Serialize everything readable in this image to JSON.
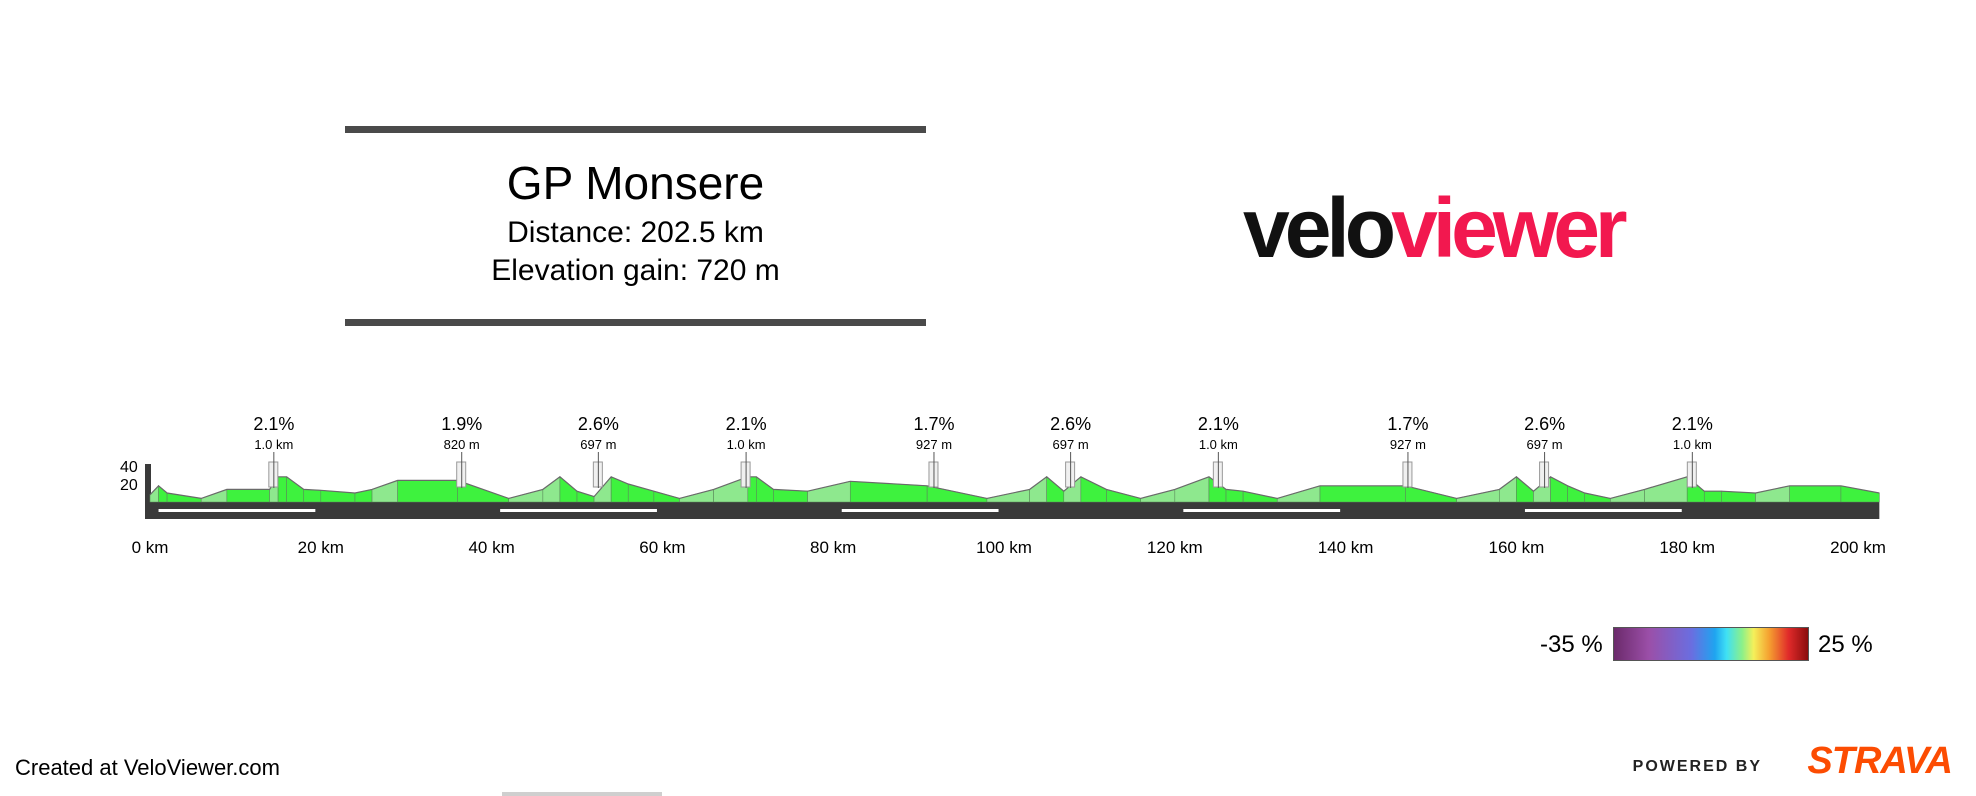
{
  "header": {
    "title": "GP Monsere",
    "distance": "Distance: 202.5 km",
    "elevation_gain": "Elevation gain: 720 m"
  },
  "logo": {
    "part1": "velo",
    "part2": "viewer"
  },
  "legend": {
    "min_label": "-35 %",
    "max_label": "25 %"
  },
  "footer": {
    "credit": "Created at VeloViewer.com",
    "powered_by": "POWERED BY",
    "strava": "STRAVA"
  },
  "colors": {
    "flat": "#3ef23e",
    "climb_light": "#8ee88e",
    "gentle": "#d6e8a0",
    "road": "#3a3a3a",
    "logo_red": "#f2184f",
    "strava": "#fc4c02"
  },
  "chart_data": {
    "type": "area",
    "title": "GP Monsere",
    "xlabel": "",
    "ylabel": "",
    "xlim": [
      0,
      202.5
    ],
    "ylim": [
      0,
      40
    ],
    "y_ticks": [
      20,
      40
    ],
    "x_ticks": [
      {
        "value": 0,
        "label": "0 km"
      },
      {
        "value": 20,
        "label": "20 km"
      },
      {
        "value": 40,
        "label": "40 km"
      },
      {
        "value": 60,
        "label": "60 km"
      },
      {
        "value": 80,
        "label": "80 km"
      },
      {
        "value": 100,
        "label": "100 km"
      },
      {
        "value": 120,
        "label": "120 km"
      },
      {
        "value": 140,
        "label": "140 km"
      },
      {
        "value": 160,
        "label": "160 km"
      },
      {
        "value": 180,
        "label": "180 km"
      },
      {
        "value": 200,
        "label": "200 km"
      }
    ],
    "profile": {
      "x": [
        0,
        1,
        2,
        6,
        9,
        14,
        15,
        16,
        18,
        20,
        24,
        26,
        29,
        36,
        42,
        46,
        48,
        50,
        52,
        54,
        56,
        59,
        62,
        66,
        70,
        71,
        73,
        77,
        82,
        91,
        98,
        103,
        105,
        107,
        109,
        112,
        116,
        120,
        124,
        126,
        128,
        132,
        137,
        147,
        153,
        158,
        160,
        162,
        164,
        166,
        168,
        171,
        175,
        180,
        182,
        184,
        188,
        192,
        198,
        202.5
      ],
      "y": [
        8,
        18,
        10,
        4,
        14,
        14,
        28,
        28,
        14,
        13,
        10,
        14,
        24,
        24,
        4,
        14,
        28,
        12,
        6,
        28,
        20,
        12,
        4,
        14,
        28,
        28,
        14,
        12,
        23,
        18,
        4,
        14,
        28,
        12,
        28,
        14,
        4,
        14,
        28,
        14,
        12,
        4,
        18,
        18,
        4,
        14,
        28,
        12,
        28,
        18,
        10,
        4,
        14,
        28,
        12,
        12,
        10,
        18,
        18,
        10
      ]
    },
    "climbs": [
      {
        "km": 14.5,
        "gradient": "2.1%",
        "length": "1.0 km"
      },
      {
        "km": 36.5,
        "gradient": "1.9%",
        "length": "820 m"
      },
      {
        "km": 52.5,
        "gradient": "2.6%",
        "length": "697 m"
      },
      {
        "km": 69.8,
        "gradient": "2.1%",
        "length": "1.0 km"
      },
      {
        "km": 91.8,
        "gradient": "1.7%",
        "length": "927 m"
      },
      {
        "km": 107.8,
        "gradient": "2.6%",
        "length": "697 m"
      },
      {
        "km": 125.1,
        "gradient": "2.1%",
        "length": "1.0 km"
      },
      {
        "km": 147.3,
        "gradient": "1.7%",
        "length": "927 m"
      },
      {
        "km": 163.3,
        "gradient": "2.6%",
        "length": "697 m"
      },
      {
        "km": 180.6,
        "gradient": "2.1%",
        "length": "1.0 km"
      }
    ]
  }
}
